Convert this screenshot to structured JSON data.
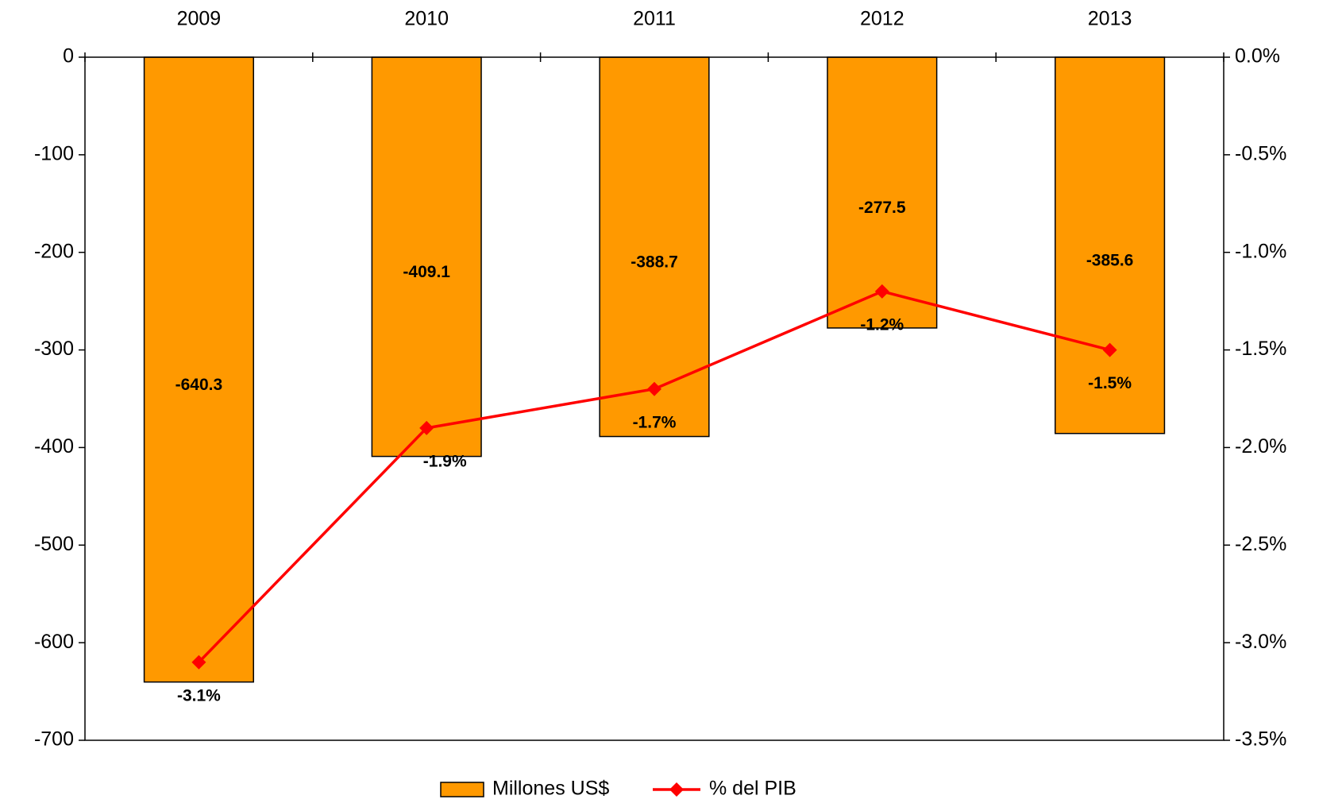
{
  "chart_data": {
    "type": "bar",
    "categories": [
      "2009",
      "2010",
      "2011",
      "2012",
      "2013"
    ],
    "series": [
      {
        "name": "Millones US$",
        "type": "bar",
        "color": "#ff9900",
        "values": [
          -640.3,
          -409.1,
          -388.7,
          -277.5,
          -385.6
        ]
      },
      {
        "name": "% del PIB",
        "type": "line",
        "axis": "y2",
        "color": "#ff0000",
        "values": [
          -3.1,
          -1.9,
          -1.7,
          -1.2,
          -1.5
        ],
        "value_labels": [
          "-3.1%",
          "-1.9%",
          "-1.7%",
          "-1.2%",
          "-1.5%"
        ]
      }
    ],
    "ylim": [
      -700,
      0
    ],
    "yticks": [
      0,
      -100,
      -200,
      -300,
      -400,
      -500,
      -600,
      -700
    ],
    "y2lim": [
      -3.5,
      0
    ],
    "y2ticks": [
      {
        "value": 0,
        "label": "0.0%"
      },
      {
        "value": -0.5,
        "label": "-0.5%"
      },
      {
        "value": -1,
        "label": "-1.0%"
      },
      {
        "value": -1.5,
        "label": "-1.5%"
      },
      {
        "value": -2,
        "label": "-2.0%"
      },
      {
        "value": -2.5,
        "label": "-2.5%"
      },
      {
        "value": -3,
        "label": "-3.0%"
      },
      {
        "value": -3.5,
        "label": "-3.5%"
      }
    ],
    "legend": "bottom"
  }
}
